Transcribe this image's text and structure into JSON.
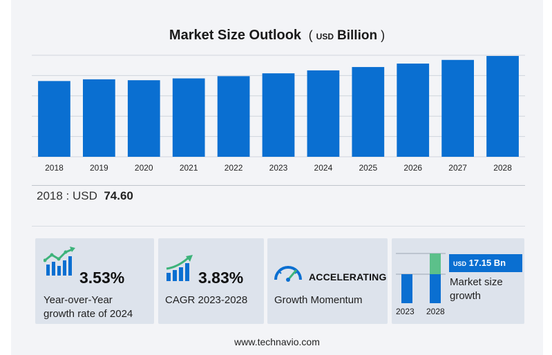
{
  "header": {
    "title": "Market Size Outlook",
    "unit_open": "(",
    "unit_currency": "USD",
    "unit_scale": "Billion",
    "unit_close": ")"
  },
  "base": {
    "label": "2018 : USD",
    "value": "74.60"
  },
  "kpis": {
    "yoy": {
      "value": "3.53%",
      "line1": "Year-over-Year",
      "line2": "growth rate of 2024"
    },
    "cagr": {
      "value": "3.83%",
      "label": "CAGR 2023-2028"
    },
    "momentum": {
      "value": "ACCELERATING",
      "label": "Growth Momentum"
    },
    "growth": {
      "currency": "USD",
      "amount": "17.15 Bn",
      "line1": "Market size",
      "line2": "growth",
      "year_start": "2023",
      "year_end": "2028"
    }
  },
  "footer": {
    "source": "www.technavio.com"
  },
  "colors": {
    "bar": "#0a6fd1",
    "growth_increment": "#5cc08a",
    "grid": "#d0d5dc",
    "card_bg": "#f3f4f7",
    "kpi_bg": "#dde3ec"
  },
  "icons": {
    "yoy": "growth-bars-icon",
    "cagr": "growth-bars-icon",
    "momentum": "speedometer-icon"
  },
  "chart_data": {
    "type": "bar",
    "title": "Market Size Outlook",
    "xlabel": "",
    "ylabel": "",
    "categories": [
      "2018",
      "2019",
      "2020",
      "2021",
      "2022",
      "2023",
      "2024",
      "2025",
      "2026",
      "2027",
      "2028"
    ],
    "values": [
      74.6,
      76.3,
      75.4,
      77.2,
      79.4,
      82.2,
      85.1,
      88.4,
      91.8,
      95.4,
      99.3
    ],
    "ylim": [
      0,
      100
    ],
    "grid": true,
    "legend": "none"
  }
}
